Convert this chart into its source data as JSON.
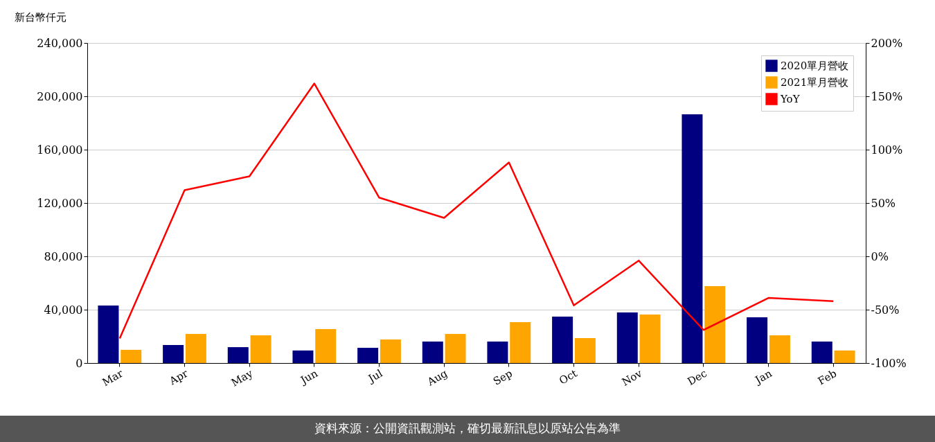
{
  "chart_data": {
    "type": "bar",
    "ylabel": "新台幣仟元",
    "categories": [
      "Mar",
      "Apr",
      "May",
      "Jun",
      "Jul",
      "Aug",
      "Sep",
      "Oct",
      "Nov",
      "Dec",
      "Jan",
      "Feb"
    ],
    "series": [
      {
        "name": "2020單月營收",
        "color": "#000080",
        "values": [
          43100,
          13500,
          11900,
          9400,
          11400,
          16100,
          16100,
          34800,
          37900,
          186500,
          34300,
          16100
        ]
      },
      {
        "name": "2021單月營收",
        "color": "#ffa500",
        "values": [
          9900,
          21800,
          20800,
          25500,
          17700,
          21800,
          30600,
          18700,
          36400,
          57700,
          20800,
          9400
        ]
      },
      {
        "name": "YoY",
        "color": "#ff0000",
        "type": "line",
        "axis": "y2",
        "values": [
          -77,
          62,
          75,
          162,
          55,
          36,
          88,
          -46,
          -4,
          -69,
          -39,
          -42
        ]
      }
    ],
    "ylim": [
      0,
      240000
    ],
    "yticks": [
      {
        "value": 0,
        "label": "0"
      },
      {
        "value": 40000,
        "label": "40,000"
      },
      {
        "value": 80000,
        "label": "80,000"
      },
      {
        "value": 120000,
        "label": "120,000"
      },
      {
        "value": 160000,
        "label": "160,000"
      },
      {
        "value": 200000,
        "label": "200,000"
      },
      {
        "value": 240000,
        "label": "240,000"
      }
    ],
    "y2lim": [
      -100,
      200
    ],
    "y2ticks": [
      {
        "value": -100,
        "label": "-100%"
      },
      {
        "value": -50,
        "label": "-50%"
      },
      {
        "value": 0,
        "label": "0%"
      },
      {
        "value": 50,
        "label": "50%"
      },
      {
        "value": 100,
        "label": "100%"
      },
      {
        "value": 150,
        "label": "150%"
      },
      {
        "value": 200,
        "label": "200%"
      }
    ],
    "grid": "y",
    "legend": "top right",
    "annotations": [
      "資料來源：公開資訊觀測站，確切最新訊息以原站公告為準"
    ]
  }
}
